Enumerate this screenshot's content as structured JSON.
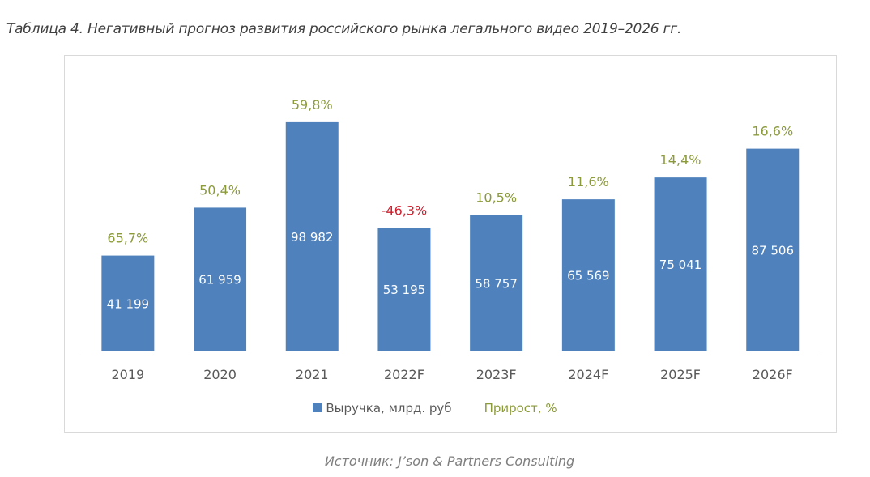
{
  "title": "Таблица 4. Негативный прогноз развития российского рынка легального видео 2019–2026 гг.",
  "source": "Источник: J’son & Partners Consulting",
  "chart_data": {
    "type": "bar",
    "categories": [
      "2019",
      "2020",
      "2021",
      "2022F",
      "2023F",
      "2024F",
      "2025F",
      "2026F"
    ],
    "series": [
      {
        "name": "Выручка, млрд. руб",
        "values": [
          41199,
          61959,
          98982,
          53195,
          58757,
          65569,
          75041,
          87506
        ],
        "labels": [
          "41 199",
          "61 959",
          "98 982",
          "53 195",
          "58 757",
          "65 569",
          "75 041",
          "87 506"
        ],
        "color": "#4f81bd"
      },
      {
        "name": "Прирост, %",
        "values": [
          65.7,
          50.4,
          59.8,
          -46.3,
          10.5,
          11.6,
          14.4,
          16.6
        ],
        "labels": [
          "65,7%",
          "50,4%",
          "59,8%",
          "-46,3%",
          "10,5%",
          "11,6%",
          "14,4%",
          "16,6%"
        ],
        "color": "#8c9a3c",
        "negative_color": "#d0202e"
      }
    ],
    "ylim": [
      0,
      120000
    ],
    "grid": false,
    "legend": "bottom"
  }
}
